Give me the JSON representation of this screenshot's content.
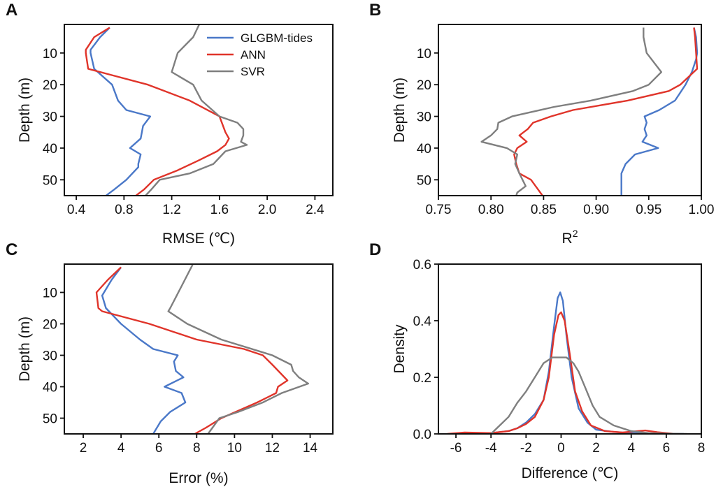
{
  "colors": {
    "GLGBM-tides": "#4a78c8",
    "ANN": "#e0342a",
    "SVR": "#7f7f7f"
  },
  "chart_data": [
    {
      "panel": "A",
      "type": "line",
      "orientation": "vertical-profile",
      "xlabel": "RMSE (℃)",
      "ylabel": "Depth (m)",
      "xlim": [
        0.3,
        2.55
      ],
      "ylim": [
        55,
        1
      ],
      "xticks": [
        0.4,
        0.8,
        1.2,
        1.6,
        2.0,
        2.4
      ],
      "xtick_labels": [
        "0.4",
        "0.8",
        "1.2",
        "1.6",
        "2.0",
        "2.4"
      ],
      "yticks": [
        10,
        20,
        30,
        40,
        50
      ],
      "ytick_labels": [
        "10",
        "20",
        "30",
        "40",
        "50"
      ],
      "legend": {
        "position": "top-right",
        "entries": [
          "GLGBM-tides",
          "ANN",
          "SVR"
        ]
      },
      "series": [
        {
          "name": "GLGBM-tides",
          "x": [
            0.68,
            0.6,
            0.52,
            0.52,
            0.55,
            0.7,
            0.75,
            0.82,
            1.02,
            0.96,
            0.95,
            0.94,
            0.85,
            0.94,
            0.92,
            0.92,
            0.82,
            0.72,
            0.65
          ],
          "depth": [
            2,
            5,
            9,
            10,
            15,
            20,
            25,
            28,
            30,
            33,
            35,
            37,
            40,
            42,
            45,
            46,
            50,
            53,
            55
          ]
        },
        {
          "name": "ANN",
          "x": [
            0.68,
            0.55,
            0.48,
            0.48,
            0.5,
            0.7,
            1.0,
            1.35,
            1.6,
            1.63,
            1.65,
            1.68,
            1.65,
            1.58,
            1.42,
            1.25,
            1.05,
            0.97,
            0.9
          ],
          "depth": [
            2,
            5,
            9,
            10,
            15,
            17,
            20,
            25,
            30,
            33,
            35,
            37,
            39,
            41,
            44,
            47,
            50,
            53,
            55
          ]
        },
        {
          "name": "SVR",
          "x": [
            1.43,
            1.38,
            1.25,
            1.2,
            1.38,
            1.45,
            1.6,
            1.75,
            1.8,
            1.8,
            1.78,
            1.83,
            1.65,
            1.55,
            1.35,
            1.1,
            1.03,
            0.98
          ],
          "depth": [
            1,
            5,
            10,
            16,
            20,
            25,
            30,
            32,
            34,
            36,
            38,
            39,
            41,
            45,
            48,
            50,
            53,
            55
          ]
        }
      ]
    },
    {
      "panel": "B",
      "type": "line",
      "orientation": "vertical-profile",
      "xlabel": "R2",
      "xlabel_main": "R",
      "xlabel_sup": "2",
      "ylabel": "Depth (m)",
      "xlim": [
        0.75,
        1.0
      ],
      "ylim": [
        55,
        1
      ],
      "xticks": [
        0.75,
        0.8,
        0.85,
        0.9,
        0.95,
        1.0
      ],
      "xtick_labels": [
        "0.75",
        "0.80",
        "0.85",
        "0.90",
        "0.95",
        "1.00"
      ],
      "yticks": [
        10,
        20,
        30,
        40,
        50
      ],
      "ytick_labels": [
        "10",
        "20",
        "30",
        "40",
        "50"
      ],
      "series": [
        {
          "name": "GLGBM-tides",
          "x": [
            0.993,
            0.995,
            0.996,
            0.995,
            0.991,
            0.985,
            0.975,
            0.96,
            0.946,
            0.948,
            0.946,
            0.948,
            0.944,
            0.959,
            0.937,
            0.928,
            0.924,
            0.924,
            0.924
          ],
          "depth": [
            2,
            5,
            10,
            12,
            16,
            20,
            25,
            28,
            30,
            32,
            34,
            36,
            38,
            40,
            42,
            45,
            48,
            52,
            55
          ]
        },
        {
          "name": "ANN",
          "x": [
            0.993,
            0.994,
            0.995,
            0.996,
            0.98,
            0.969,
            0.93,
            0.878,
            0.857,
            0.84,
            0.835,
            0.827,
            0.834,
            0.825,
            0.822,
            0.824,
            0.827,
            0.838,
            0.849
          ],
          "depth": [
            2,
            5,
            10,
            15,
            20,
            22,
            25,
            28,
            30,
            32,
            34,
            36,
            38,
            40,
            42,
            45,
            48,
            50,
            55
          ]
        },
        {
          "name": "SVR",
          "x": [
            0.945,
            0.945,
            0.948,
            0.962,
            0.95,
            0.935,
            0.895,
            0.86,
            0.82,
            0.807,
            0.806,
            0.8,
            0.791,
            0.815,
            0.825,
            0.823,
            0.827,
            0.833,
            0.825,
            0.824
          ],
          "depth": [
            2,
            5,
            10,
            16,
            20,
            22,
            25,
            27,
            30,
            32,
            34,
            36,
            38,
            40,
            42,
            45,
            48,
            52,
            54,
            55
          ]
        }
      ]
    },
    {
      "panel": "C",
      "type": "line",
      "orientation": "vertical-profile",
      "xlabel": "Error (%)",
      "ylabel": "Depth (m)",
      "xlim": [
        1,
        15.2
      ],
      "ylim": [
        55,
        1
      ],
      "xticks": [
        2,
        4,
        6,
        8,
        10,
        12,
        14
      ],
      "xtick_labels": [
        "2",
        "4",
        "6",
        "8",
        "10",
        "12",
        "14"
      ],
      "yticks": [
        10,
        20,
        30,
        40,
        50
      ],
      "ytick_labels": [
        "10",
        "20",
        "30",
        "40",
        "50"
      ],
      "series": [
        {
          "name": "GLGBM-tides",
          "x": [
            4.0,
            3.5,
            3.1,
            3.0,
            3.2,
            4.0,
            5.0,
            5.7,
            7.0,
            6.8,
            6.9,
            7.3,
            6.3,
            7.2,
            7.4,
            6.6,
            6.1,
            5.7
          ],
          "depth": [
            2,
            6,
            10,
            11,
            15,
            20,
            25,
            28,
            30,
            32,
            35,
            37,
            40,
            42,
            45,
            48,
            51,
            55
          ]
        },
        {
          "name": "ANN",
          "x": [
            4.0,
            3.3,
            2.7,
            2.8,
            3.0,
            5.5,
            8.0,
            10.5,
            11.5,
            12.0,
            12.8,
            12.3,
            12.2,
            11.2,
            9.3,
            8.5,
            7.9
          ],
          "depth": [
            2,
            6,
            10,
            15,
            16,
            20,
            25,
            28,
            30,
            33,
            38,
            40,
            42,
            45,
            50,
            53,
            55
          ]
        },
        {
          "name": "SVR",
          "x": [
            7.8,
            7.2,
            6.6,
            6.5,
            7.5,
            9.3,
            12.0,
            13.0,
            13.1,
            13.4,
            13.9,
            12.5,
            11.5,
            10.2,
            9.2,
            8.6
          ],
          "depth": [
            1,
            8,
            15,
            16,
            20,
            25,
            30,
            33,
            35,
            37,
            39,
            42,
            45,
            48,
            50,
            55
          ]
        }
      ]
    },
    {
      "panel": "D",
      "type": "line",
      "xlabel": "Difference (℃)",
      "ylabel": "Density",
      "xlim": [
        -7,
        8
      ],
      "ylim": [
        0,
        0.6
      ],
      "xticks": [
        -6,
        -4,
        -2,
        0,
        2,
        4,
        6,
        8
      ],
      "xtick_labels": [
        "-6",
        "-4",
        "-2",
        "0",
        "2",
        "4",
        "6",
        "8"
      ],
      "yticks": [
        0,
        0.2,
        0.4,
        0.6
      ],
      "ytick_labels": [
        "0.0",
        "0.2",
        "0.4",
        "0.6"
      ],
      "series": [
        {
          "name": "GLGBM-tides",
          "x": [
            -6,
            -4,
            -3,
            -2.5,
            -2,
            -1.5,
            -1.0,
            -0.7,
            -0.4,
            -0.2,
            -0.05,
            0.1,
            0.3,
            0.6,
            1.0,
            1.5,
            2,
            3,
            4,
            5,
            7
          ],
          "y": [
            0.0,
            0.003,
            0.01,
            0.02,
            0.04,
            0.07,
            0.12,
            0.22,
            0.38,
            0.48,
            0.5,
            0.47,
            0.35,
            0.2,
            0.09,
            0.04,
            0.015,
            0.007,
            0.003,
            0.001,
            0.0
          ]
        },
        {
          "name": "ANN",
          "x": [
            -6.5,
            -5.5,
            -4,
            -3,
            -2.5,
            -2,
            -1.5,
            -1.0,
            -0.7,
            -0.4,
            -0.15,
            0,
            0.2,
            0.5,
            0.8,
            1.2,
            1.7,
            2.5,
            3.5,
            4.8,
            5.5,
            6.5
          ],
          "y": [
            0.0,
            0.005,
            0.003,
            0.01,
            0.02,
            0.035,
            0.06,
            0.12,
            0.2,
            0.35,
            0.42,
            0.43,
            0.4,
            0.28,
            0.15,
            0.08,
            0.03,
            0.01,
            0.005,
            0.012,
            0.006,
            0.0
          ]
        },
        {
          "name": "SVR",
          "x": [
            -4,
            -3.5,
            -3,
            -2.5,
            -2,
            -1.5,
            -1,
            -0.5,
            0,
            0.3,
            0.7,
            1,
            1.4,
            1.8,
            2.2,
            3,
            4,
            5,
            6,
            7.2
          ],
          "y": [
            0.0,
            0.03,
            0.06,
            0.11,
            0.15,
            0.2,
            0.25,
            0.27,
            0.27,
            0.27,
            0.25,
            0.22,
            0.16,
            0.1,
            0.06,
            0.03,
            0.01,
            0.003,
            0.001,
            0.0
          ]
        }
      ]
    }
  ]
}
